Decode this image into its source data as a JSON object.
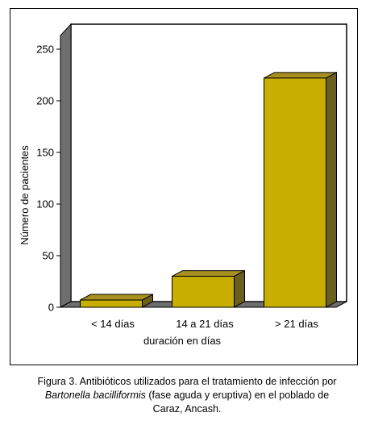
{
  "chart_data": {
    "type": "bar",
    "categories": [
      "< 14 días",
      "14 a 21 días",
      "> 21 días"
    ],
    "values": [
      7,
      30,
      222
    ],
    "xlabel": "duración en días",
    "ylabel": "Número de pacientes",
    "ylim": [
      0,
      250
    ],
    "yticks": [
      0,
      50,
      100,
      150,
      200,
      250
    ],
    "grid": false,
    "style": "3d",
    "colors": {
      "bar_front": "#c8ae00",
      "bar_side": "#6b5f1c",
      "bar_top": "#a89020",
      "wall": "#6e6e6e",
      "floor": "#6e6e6e"
    }
  },
  "caption": {
    "line1": "Figura 3. Antibióticos utilizados para el tratamiento de infección por",
    "line2_italic": "Bartonella bacilliformis",
    "line2_rest": " (fase aguda y eruptiva) en el poblado de",
    "line3": "Caraz, Ancash."
  }
}
